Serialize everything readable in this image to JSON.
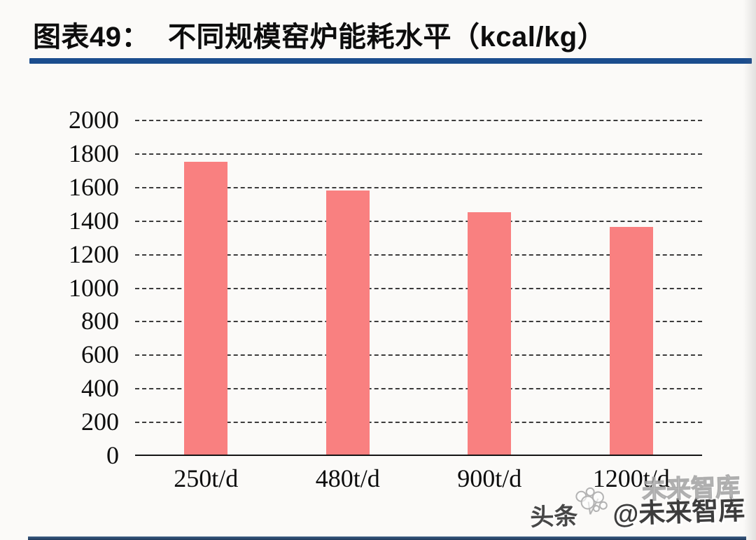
{
  "header": {
    "label": "图表49：",
    "title": "不同规模窑炉能耗水平（kcal/kg）"
  },
  "chart_data": {
    "type": "bar",
    "title": "不同规模窑炉能耗水平（kcal/kg）",
    "categories": [
      "250t/d",
      "480t/d",
      "900t/d",
      "1200t/d"
    ],
    "values": [
      1750,
      1580,
      1450,
      1360
    ],
    "xlabel": "",
    "ylabel": "",
    "ylim": [
      0,
      2000
    ],
    "ytick_step": 200,
    "grid": "horizontal-dashed",
    "legend": "none",
    "bar_color": "#F98080"
  },
  "watermark": {
    "prefix": "头条",
    "logo": "dandelion-icon",
    "handle": "@未来智库",
    "ghost": "未来智库"
  },
  "colors": {
    "title_rule": "#1B4D8E",
    "bottom_rule": "#223C5F",
    "bar": "#F98080",
    "background": "#FBFAF8"
  }
}
